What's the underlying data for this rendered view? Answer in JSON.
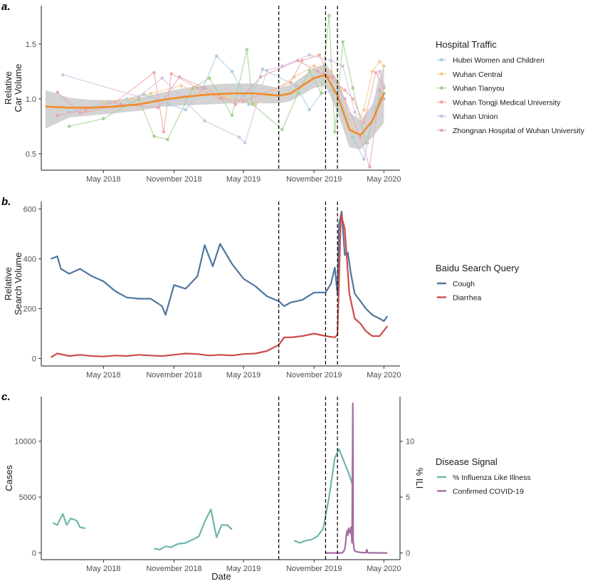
{
  "chart_data": [
    {
      "panel_label": "a.",
      "type": "line",
      "ylabel_lines": [
        "Relative",
        "Car Volume"
      ],
      "xlabel": "",
      "x_ticks": [
        "May 2018",
        "November 2018",
        "May 2019",
        "November 2019",
        "May 2020"
      ],
      "y_ticks": [
        "0.5",
        "1.0",
        "1.5"
      ],
      "ylim": [
        0.35,
        1.85
      ],
      "legend_title": "Hospital Traffic",
      "vlines": [
        "2019-08-01",
        "2019-12-01",
        "2020-01-01"
      ],
      "smooth": {
        "color": "#f08c2a",
        "x": [
          "2017-12-01",
          "2018-02-01",
          "2018-04-01",
          "2018-06-01",
          "2018-08-01",
          "2018-10-01",
          "2018-12-01",
          "2019-02-01",
          "2019-04-01",
          "2019-06-01",
          "2019-08-01",
          "2019-09-01",
          "2019-10-01",
          "2019-11-01",
          "2019-12-01",
          "2020-01-01",
          "2020-02-01",
          "2020-03-01",
          "2020-04-01",
          "2020-05-01"
        ],
        "y": [
          0.93,
          0.92,
          0.92,
          0.93,
          0.95,
          0.99,
          1.02,
          1.04,
          1.05,
          1.05,
          1.03,
          1.05,
          1.12,
          1.19,
          1.22,
          1.03,
          0.72,
          0.67,
          0.8,
          1.05
        ],
        "band_upper": [
          1.08,
          1.01,
          0.99,
          0.99,
          1.01,
          1.06,
          1.1,
          1.13,
          1.14,
          1.14,
          1.1,
          1.13,
          1.2,
          1.28,
          1.32,
          1.18,
          0.88,
          0.8,
          0.95,
          1.32
        ],
        "band_lower": [
          0.73,
          0.83,
          0.85,
          0.87,
          0.89,
          0.93,
          0.94,
          0.95,
          0.96,
          0.96,
          0.96,
          0.98,
          1.04,
          1.1,
          1.12,
          0.88,
          0.56,
          0.54,
          0.65,
          0.78
        ]
      },
      "series": [
        {
          "name": "Hubei Women and Children",
          "color": "#a6cbe0",
          "x": [
            "2018-02-01",
            "2018-05-15",
            "2018-07-01",
            "2018-08-15",
            "2018-10-20",
            "2018-12-01",
            "2019-01-15",
            "2019-02-20",
            "2019-04-01",
            "2019-05-15",
            "2019-06-20",
            "2019-09-15",
            "2019-10-20",
            "2019-11-20",
            "2020-01-01",
            "2020-02-10",
            "2020-03-10",
            "2020-04-10",
            "2020-05-01"
          ],
          "y": [
            0.88,
            0.97,
            1.0,
            1.04,
            0.95,
            0.9,
            1.1,
            1.39,
            1.25,
            0.95,
            1.27,
            1.12,
            0.9,
            1.05,
            1.1,
            0.65,
            0.45,
            0.92,
            1.05
          ]
        },
        {
          "name": "Wuhan Central",
          "color": "#f7c58e",
          "x": [
            "2018-05-01",
            "2018-07-15",
            "2018-09-01",
            "2018-11-20",
            "2019-01-10",
            "2019-03-15",
            "2019-06-01",
            "2019-09-10",
            "2019-11-01",
            "2019-12-15",
            "2020-01-10",
            "2020-02-10",
            "2020-03-10",
            "2020-04-01",
            "2020-04-20",
            "2020-05-01"
          ],
          "y": [
            0.97,
            1.0,
            1.05,
            1.12,
            1.05,
            1.02,
            0.95,
            1.2,
            1.3,
            1.25,
            1.1,
            0.7,
            0.9,
            1.25,
            1.34,
            1.3
          ]
        },
        {
          "name": "Wuhan Tianyou",
          "color": "#9fcf8c",
          "x": [
            "2018-02-01",
            "2018-05-01",
            "2018-08-01",
            "2018-09-10",
            "2018-10-15",
            "2018-12-20",
            "2019-02-01",
            "2019-04-01",
            "2019-05-10",
            "2019-05-25",
            "2019-08-10",
            "2019-09-20",
            "2019-10-20",
            "2019-11-20",
            "2019-12-10",
            "2019-12-25",
            "2020-01-15",
            "2020-02-10",
            "2020-03-15",
            "2020-04-20",
            "2020-05-01"
          ],
          "y": [
            0.75,
            0.82,
            1.0,
            0.66,
            0.63,
            1.1,
            1.19,
            0.85,
            1.45,
            0.95,
            0.72,
            1.05,
            1.26,
            1.05,
            1.76,
            0.7,
            1.52,
            1.1,
            0.6,
            1.0,
            1.05
          ]
        },
        {
          "name": "Wuhan Tongji Medical University",
          "color": "#f3a3a3",
          "x": [
            "2018-01-01",
            "2018-03-15",
            "2018-06-01",
            "2018-09-10",
            "2018-10-05",
            "2018-10-25",
            "2019-01-01",
            "2019-03-01",
            "2019-05-01",
            "2019-09-01",
            "2019-10-01",
            "2019-11-15",
            "2019-12-10",
            "2020-01-20",
            "2020-02-10",
            "2020-03-10",
            "2020-04-10",
            "2020-05-01"
          ],
          "y": [
            0.85,
            0.9,
            0.97,
            1.24,
            0.7,
            1.23,
            1.1,
            1.0,
            0.98,
            1.15,
            1.35,
            1.4,
            1.2,
            1.08,
            1.0,
            0.78,
            1.24,
            1.1
          ]
        },
        {
          "name": "Wuhan Union",
          "color": "#d3bde0",
          "x": [
            "2018-01-15",
            "2018-08-01",
            "2018-10-01",
            "2019-01-20",
            "2019-04-20",
            "2019-05-05",
            "2019-07-01",
            "2019-08-10",
            "2019-10-20",
            "2019-12-15",
            "2020-01-15",
            "2020-02-15",
            "2020-03-20",
            "2020-04-20",
            "2020-05-01"
          ],
          "y": [
            1.22,
            1.02,
            1.19,
            0.8,
            0.65,
            0.6,
            1.26,
            1.3,
            1.4,
            1.35,
            1.3,
            0.88,
            0.6,
            1.25,
            1.12
          ]
        },
        {
          "name": "Zhongnan Hospital of Wuhan University",
          "color": "#e2a4b3",
          "x": [
            "2018-01-01",
            "2018-03-01",
            "2018-06-15",
            "2018-09-20",
            "2018-11-15",
            "2019-01-20",
            "2019-04-10",
            "2019-06-15",
            "2019-09-20",
            "2019-11-10",
            "2019-12-20",
            "2020-01-20",
            "2020-03-01",
            "2020-03-25",
            "2020-04-20",
            "2020-05-01"
          ],
          "y": [
            1.06,
            0.87,
            0.95,
            0.92,
            1.2,
            1.1,
            0.95,
            1.2,
            1.35,
            1.25,
            1.2,
            1.0,
            0.65,
            0.38,
            1.08,
            1.0
          ]
        }
      ]
    },
    {
      "panel_label": "b.",
      "type": "line",
      "ylabel_lines": [
        "Relative",
        "Search Volume"
      ],
      "xlabel": "",
      "x_ticks": [
        "May 2018",
        "November 2018",
        "May 2019",
        "November 2019",
        "May 2020"
      ],
      "y_ticks": [
        "0",
        "200",
        "400",
        "600"
      ],
      "ylim": [
        -30,
        630
      ],
      "legend_title": "Baidu Search Query",
      "vlines": [
        "2019-08-01",
        "2019-12-01",
        "2020-01-01"
      ],
      "series": [
        {
          "name": "Cough",
          "color": "#4f76a0",
          "x": [
            "2017-12-15",
            "2018-01-01",
            "2018-01-10",
            "2018-02-01",
            "2018-03-01",
            "2018-04-01",
            "2018-05-01",
            "2018-06-01",
            "2018-07-01",
            "2018-08-01",
            "2018-09-01",
            "2018-10-01",
            "2018-10-10",
            "2018-11-01",
            "2018-12-01",
            "2019-01-01",
            "2019-01-20",
            "2019-02-10",
            "2019-03-01",
            "2019-04-01",
            "2019-05-01",
            "2019-06-01",
            "2019-07-01",
            "2019-08-01",
            "2019-08-15",
            "2019-09-01",
            "2019-10-01",
            "2019-11-01",
            "2019-12-01",
            "2019-12-15",
            "2019-12-25",
            "2020-01-01",
            "2020-01-05",
            "2020-01-12",
            "2020-01-20",
            "2020-01-28",
            "2020-02-05",
            "2020-02-15",
            "2020-03-01",
            "2020-03-15",
            "2020-04-01",
            "2020-04-20",
            "2020-05-01",
            "2020-05-10"
          ],
          "y": [
            400,
            410,
            360,
            340,
            360,
            330,
            310,
            270,
            245,
            240,
            240,
            210,
            175,
            295,
            280,
            330,
            455,
            370,
            460,
            380,
            320,
            290,
            250,
            230,
            210,
            225,
            235,
            265,
            265,
            300,
            365,
            260,
            540,
            590,
            415,
            425,
            340,
            260,
            230,
            200,
            175,
            160,
            150,
            170
          ]
        },
        {
          "name": "Diarrhea",
          "color": "#cc4b4b",
          "x": [
            "2017-12-15",
            "2018-01-01",
            "2018-02-01",
            "2018-03-01",
            "2018-04-01",
            "2018-05-01",
            "2018-06-01",
            "2018-07-01",
            "2018-08-01",
            "2018-09-01",
            "2018-10-01",
            "2018-11-01",
            "2018-12-01",
            "2019-01-01",
            "2019-02-01",
            "2019-03-01",
            "2019-04-01",
            "2019-05-01",
            "2019-06-01",
            "2019-07-01",
            "2019-08-01",
            "2019-08-15",
            "2019-09-01",
            "2019-10-01",
            "2019-11-01",
            "2019-12-01",
            "2019-12-25",
            "2020-01-01",
            "2020-01-10",
            "2020-01-20",
            "2020-02-01",
            "2020-02-15",
            "2020-03-01",
            "2020-03-15",
            "2020-04-01",
            "2020-04-20",
            "2020-05-10"
          ],
          "y": [
            5,
            20,
            10,
            15,
            10,
            8,
            12,
            10,
            15,
            12,
            10,
            15,
            20,
            18,
            12,
            15,
            12,
            18,
            20,
            30,
            55,
            85,
            85,
            90,
            100,
            90,
            85,
            95,
            580,
            520,
            260,
            160,
            140,
            110,
            90,
            90,
            130
          ]
        }
      ]
    },
    {
      "panel_label": "c.",
      "type": "line",
      "ylabel_lines": [
        "Cases"
      ],
      "ylabel_right": "% ILI",
      "xlabel": "Date",
      "x_ticks": [
        "May 2018",
        "November 2018",
        "May 2019",
        "November 2019",
        "May 2020"
      ],
      "y_ticks": [
        "0",
        "5000",
        "10000"
      ],
      "y_ticks_right": [
        "0",
        "5",
        "10"
      ],
      "ylim": [
        -600,
        14000
      ],
      "legend_title": "Disease Signal",
      "vlines": [
        "2019-08-01",
        "2019-12-01",
        "2020-01-01"
      ],
      "series": [
        {
          "name": "% Influenza Like Illness",
          "color": "#6fb6ad",
          "axis": "right",
          "segments": [
            {
              "x": [
                "2017-12-20",
                "2018-01-01",
                "2018-01-15",
                "2018-01-25",
                "2018-02-05",
                "2018-02-20",
                "2018-03-01",
                "2018-03-15"
              ],
              "y": [
                2.7,
                2.5,
                3.5,
                2.5,
                3.1,
                2.9,
                2.3,
                2.2
              ]
            },
            {
              "x": [
                "2018-09-10",
                "2018-09-25",
                "2018-10-10",
                "2018-10-25",
                "2018-11-10",
                "2018-12-01",
                "2018-12-20",
                "2019-01-05",
                "2019-01-20",
                "2019-02-05",
                "2019-02-20",
                "2019-03-05",
                "2019-03-20",
                "2019-04-01"
              ],
              "y": [
                0.4,
                0.3,
                0.6,
                0.5,
                0.8,
                0.9,
                1.2,
                1.5,
                2.8,
                3.9,
                1.4,
                2.5,
                2.5,
                2.1
              ]
            },
            {
              "x": [
                "2019-09-10",
                "2019-09-25",
                "2019-10-10",
                "2019-10-25",
                "2019-11-10",
                "2019-11-25",
                "2019-12-10",
                "2019-12-25",
                "2020-01-05",
                "2020-01-20",
                "2020-02-01",
                "2020-02-10"
              ],
              "y": [
                1.1,
                0.9,
                1.1,
                1.2,
                1.5,
                2.2,
                5.0,
                8.5,
                9.3,
                8.0,
                7.0,
                6.0
              ]
            }
          ]
        },
        {
          "name": "Confirmed COVID-19",
          "color": "#a56ba3",
          "axis": "left",
          "x": [
            "2019-12-01",
            "2019-12-20",
            "2020-01-10",
            "2020-01-15",
            "2020-01-18",
            "2020-01-20",
            "2020-01-22",
            "2020-01-24",
            "2020-01-26",
            "2020-01-28",
            "2020-01-30",
            "2020-02-02",
            "2020-02-05",
            "2020-02-08",
            "2020-02-10",
            "2020-02-11",
            "2020-02-12",
            "2020-02-13",
            "2020-02-15",
            "2020-02-20",
            "2020-03-01",
            "2020-03-15",
            "2020-03-18",
            "2020-03-19",
            "2020-03-20",
            "2020-04-01",
            "2020-05-01",
            "2020-05-10"
          ],
          "y": [
            0,
            0,
            0,
            50,
            200,
            400,
            800,
            1500,
            2000,
            1600,
            2200,
            1800,
            2300,
            900,
            13400,
            1000,
            800,
            400,
            200,
            100,
            50,
            20,
            300,
            50,
            20,
            10,
            0,
            0
          ]
        }
      ]
    }
  ]
}
